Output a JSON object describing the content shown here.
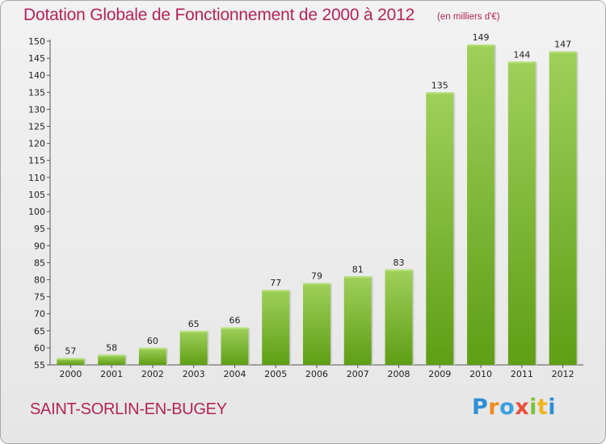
{
  "chart_data": {
    "type": "bar",
    "title": "Dotation Globale de Fonctionnement de 2000 à 2012",
    "subtitle": "(en milliers d'€)",
    "categories": [
      "2000",
      "2001",
      "2002",
      "2003",
      "2004",
      "2005",
      "2006",
      "2007",
      "2008",
      "2009",
      "2010",
      "2011",
      "2012"
    ],
    "values": [
      57,
      58,
      60,
      65,
      66,
      77,
      79,
      81,
      83,
      135,
      149,
      144,
      147
    ],
    "ylim": [
      55,
      150
    ],
    "yticks": [
      55,
      60,
      65,
      70,
      75,
      80,
      85,
      90,
      95,
      100,
      105,
      110,
      115,
      120,
      125,
      130,
      135,
      140,
      145,
      150
    ],
    "xlabel": "",
    "ylabel": "",
    "grid": false,
    "bar_color_top": "#9fd05a",
    "bar_color_bottom": "#5f9e15"
  },
  "footer": {
    "commune": "SAINT-SORLIN-EN-BUGEY",
    "logo_letters": [
      "P",
      "r",
      "o",
      "x",
      "i",
      "t",
      "i"
    ]
  },
  "colors": {
    "title": "#b3245a",
    "background": "#eaeaea"
  }
}
